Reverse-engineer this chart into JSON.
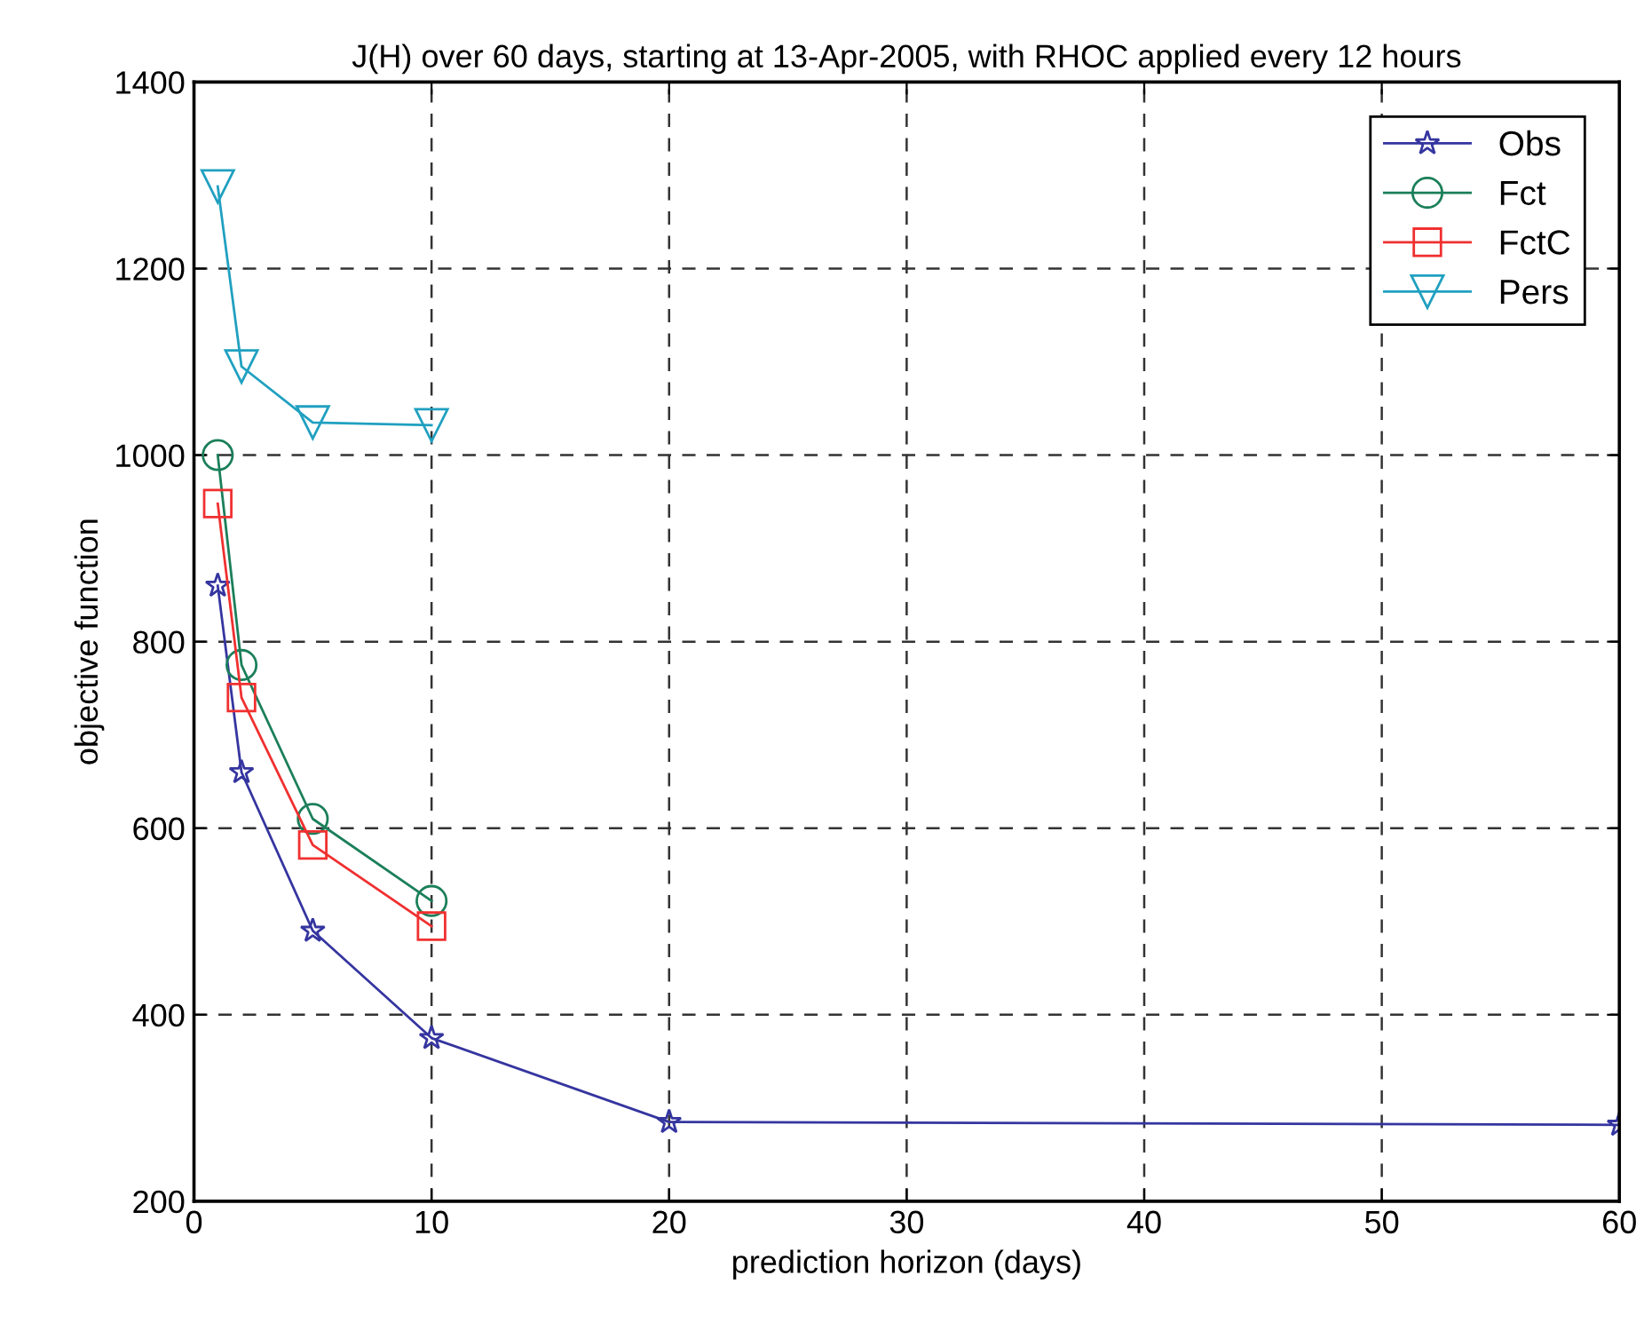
{
  "chart_data": {
    "type": "line",
    "title": "J(H) over 60 days, starting at 13-Apr-2005, with RHOC applied every 12 hours",
    "xlabel": "prediction horizon (days)",
    "ylabel": "objective function",
    "xlim": [
      0,
      60
    ],
    "xticks": [
      0,
      10,
      20,
      30,
      40,
      50,
      60
    ],
    "ylim": [
      200,
      1400
    ],
    "yticks": [
      200,
      400,
      600,
      800,
      1000,
      1200,
      1400
    ],
    "grid": true,
    "legend": "top right",
    "line_style": "solid",
    "series": [
      {
        "name": "Obs",
        "color": "#3535a0",
        "marker": "star",
        "x": [
          1,
          2,
          5,
          10,
          20,
          60
        ],
        "values": [
          860,
          660,
          490,
          375,
          285,
          282
        ]
      },
      {
        "name": "Fct",
        "color": "#1b7f5a",
        "marker": "circle",
        "x": [
          1,
          2,
          5,
          10
        ],
        "values": [
          1000,
          775,
          610,
          522
        ]
      },
      {
        "name": "FctC",
        "color": "#f03030",
        "marker": "square",
        "x": [
          1,
          2,
          5,
          10
        ],
        "values": [
          948,
          740,
          582,
          495
        ]
      },
      {
        "name": "Pers",
        "color": "#20a0c0",
        "marker": "triangle",
        "x": [
          1,
          2,
          5,
          10
        ],
        "values": [
          1288,
          1095,
          1035,
          1032
        ]
      }
    ]
  }
}
